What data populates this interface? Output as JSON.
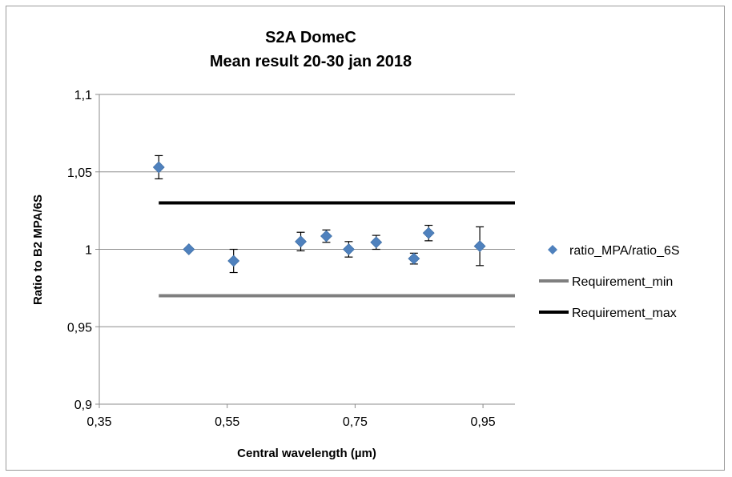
{
  "chart_data": {
    "type": "scatter",
    "title_lines": [
      "S2A DomeC",
      "Mean result 20-30 jan 2018"
    ],
    "xlabel": "Central wavelength (µm)",
    "ylabel": "Ratio to B2 MPA/6S",
    "xlim": [
      0.35,
      1.0
    ],
    "ylim": [
      0.9,
      1.1
    ],
    "x_ticks": [
      0.35,
      0.55,
      0.75,
      0.95
    ],
    "x_tick_labels": [
      "0,35",
      "0,55",
      "0,75",
      "0,95"
    ],
    "y_ticks": [
      0.9,
      0.95,
      1.0,
      1.05,
      1.1
    ],
    "y_tick_labels": [
      "0,9",
      "0,95",
      "1",
      "1,05",
      "1,1"
    ],
    "grid": "horizontal",
    "legend_position": "right",
    "series": [
      {
        "name": "ratio_MPA/ratio_6S",
        "kind": "points-with-error-bars",
        "color": "#4f81bd",
        "points": [
          {
            "x": 0.443,
            "y": 1.053,
            "err": 0.0075
          },
          {
            "x": 0.49,
            "y": 1.0,
            "err": 0.0
          },
          {
            "x": 0.56,
            "y": 0.9925,
            "err": 0.0075
          },
          {
            "x": 0.665,
            "y": 1.005,
            "err": 0.006
          },
          {
            "x": 0.705,
            "y": 1.0085,
            "err": 0.004
          },
          {
            "x": 0.74,
            "y": 1.0,
            "err": 0.005
          },
          {
            "x": 0.783,
            "y": 1.0045,
            "err": 0.0045
          },
          {
            "x": 0.842,
            "y": 0.994,
            "err": 0.0035
          },
          {
            "x": 0.865,
            "y": 1.0105,
            "err": 0.005
          },
          {
            "x": 0.945,
            "y": 1.002,
            "err": 0.0125
          }
        ]
      },
      {
        "name": "Requirement_min",
        "kind": "line",
        "color": "#7f7f7f",
        "x": [
          0.443,
          1.0
        ],
        "y": [
          0.97,
          0.97
        ]
      },
      {
        "name": "Requirement_max",
        "kind": "line",
        "color": "#000000",
        "x": [
          0.443,
          1.0
        ],
        "y": [
          1.03,
          1.03
        ]
      }
    ]
  }
}
